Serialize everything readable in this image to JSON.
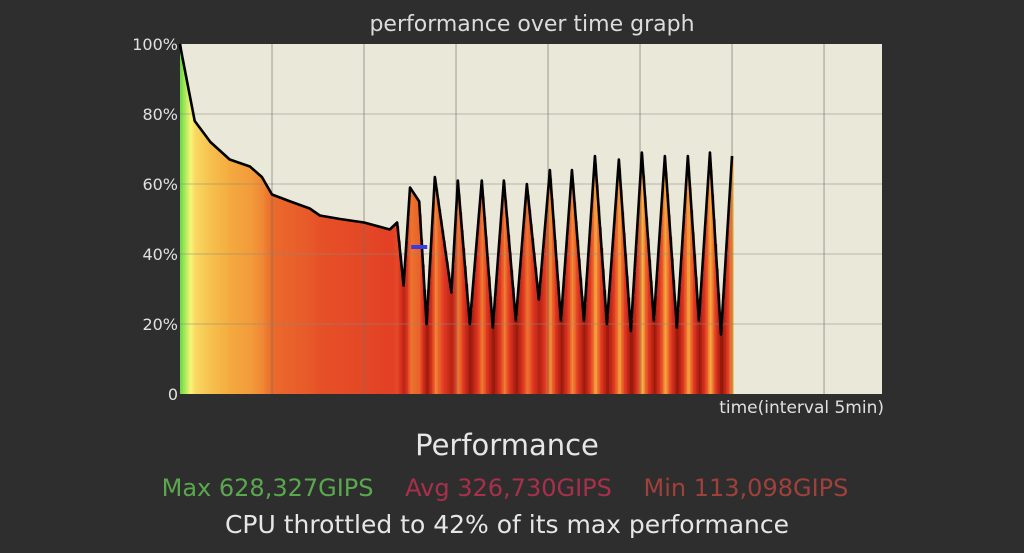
{
  "chart_data": {
    "type": "area",
    "title": "performance over time graph",
    "xlabel": "time(interval 5min)",
    "ylabel": "",
    "ylim": [
      0,
      100
    ],
    "xlim": [
      0,
      7.63
    ],
    "ytick_labels": [
      "0",
      "20%",
      "40%",
      "60%",
      "80%",
      "100%"
    ],
    "yticks": [
      0,
      20,
      40,
      60,
      80,
      100
    ],
    "xgrid": [
      1,
      2,
      3,
      4,
      5,
      6,
      7
    ],
    "grid": true,
    "colors": {
      "background": "#2e2e2e",
      "plot": "#e9e8d9",
      "line": "#000000",
      "marker": "#3a3ae6"
    },
    "throttle_marker": {
      "x": 2.6,
      "y": 42
    },
    "series": [
      {
        "name": "performance",
        "x": [
          0,
          0.02,
          0.16,
          0.33,
          0.54,
          0.76,
          0.89,
          1.0,
          1.2,
          1.41,
          1.52,
          1.74,
          2.0,
          2.28,
          2.36,
          2.43,
          2.5,
          2.6,
          2.68,
          2.77,
          2.95,
          3.02,
          3.15,
          3.28,
          3.4,
          3.52,
          3.65,
          3.77,
          3.9,
          4.02,
          4.14,
          4.26,
          4.39,
          4.51,
          4.64,
          4.77,
          4.9,
          5.02,
          5.15,
          5.27,
          5.4,
          5.52,
          5.64,
          5.76,
          5.88,
          6.0
        ],
        "y": [
          100,
          97,
          78,
          72,
          67,
          65,
          62,
          57,
          55,
          53,
          51,
          50,
          49,
          47,
          49,
          31,
          59,
          55,
          20,
          62,
          29,
          61,
          20,
          61,
          19,
          61,
          21,
          60,
          27,
          64,
          21,
          64,
          21,
          68,
          20,
          67,
          18,
          69,
          21,
          68,
          19,
          68,
          21,
          69,
          17,
          68
        ]
      }
    ]
  },
  "summary": {
    "heading": "Performance",
    "max": "Max 628,327GIPS",
    "avg": "Avg 326,730GIPS",
    "min": "Min 113,098GIPS",
    "throttle": "CPU throttled to 42% of its max performance",
    "max_color": "#5aa84e",
    "avg_color": "#a8304a",
    "min_color": "#a0403a"
  }
}
